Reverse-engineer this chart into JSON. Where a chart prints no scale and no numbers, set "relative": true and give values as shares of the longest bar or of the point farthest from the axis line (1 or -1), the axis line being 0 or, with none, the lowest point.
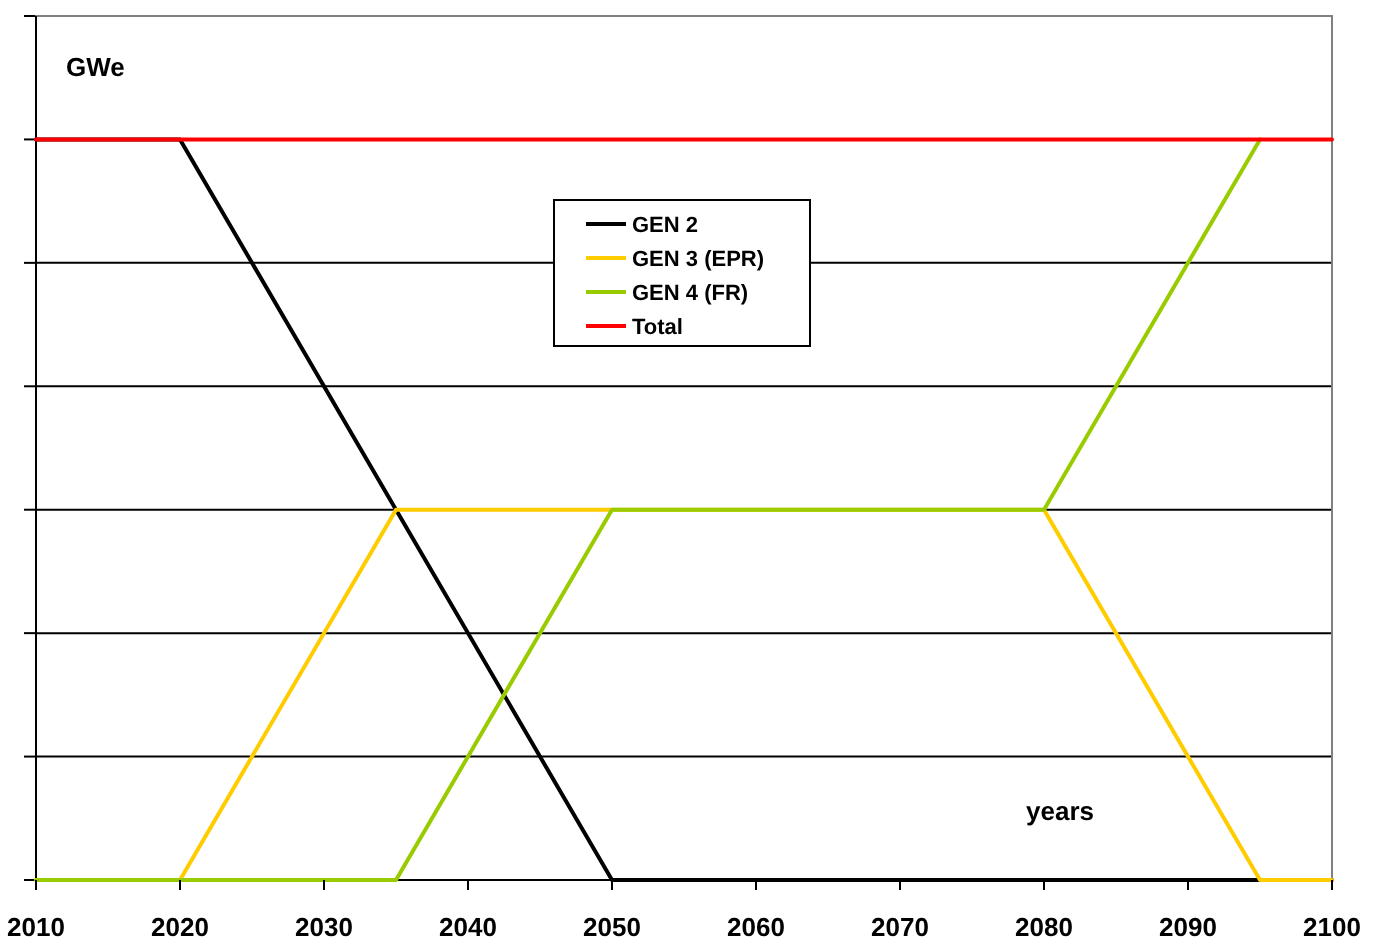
{
  "chart_data": {
    "type": "line",
    "relative": true,
    "xlabel": "years",
    "ylabel": "GWe",
    "xlim": [
      2010,
      2100
    ],
    "xticks": [
      2010,
      2020,
      2030,
      2040,
      2050,
      2060,
      2070,
      2080,
      2090,
      2100
    ],
    "grid": "y",
    "legend": "top",
    "marker": "none",
    "line_style": "solid",
    "series": [
      {
        "name": "GEN 2",
        "color": "#000000",
        "x": [
          2010,
          2020,
          2050,
          2100
        ],
        "values": [
          1,
          1,
          0,
          0
        ]
      },
      {
        "name": "GEN 3 (EPR)",
        "color": "#ffcc00",
        "x": [
          2010,
          2020,
          2035,
          2080,
          2095,
          2100
        ],
        "values": [
          0,
          0,
          0.5,
          0.5,
          0,
          0
        ]
      },
      {
        "name": "GEN 4 (FR)",
        "color": "#99cc00",
        "x": [
          2010,
          2035,
          2050,
          2080,
          2095
        ],
        "values": [
          0,
          0,
          0.5,
          0.5,
          1
        ]
      },
      {
        "name": "Total",
        "color": "#ff0000",
        "x": [
          2010,
          2100
        ],
        "values": [
          1,
          1
        ]
      }
    ]
  }
}
